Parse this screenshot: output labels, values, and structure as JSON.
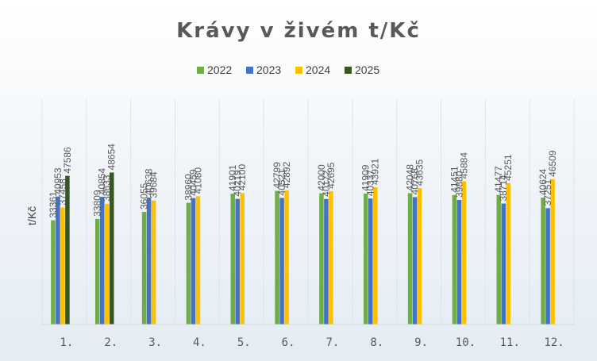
{
  "chart_data": {
    "type": "bar",
    "title": "Krávy v živém t/Kč",
    "xlabel": "",
    "ylabel": "t/Kč",
    "categories": [
      "1.",
      "2.",
      "3.",
      "4.",
      "5.",
      "6.",
      "7.",
      "8.",
      "9.",
      "10.",
      "11.",
      "12."
    ],
    "series": [
      {
        "name": "2022",
        "color": "#70ad47",
        "values": [
          33361,
          33809,
          36055,
          38960,
          41901,
          42799,
          42000,
          41909,
          42048,
          41451,
          41477,
          40624
        ]
      },
      {
        "name": "2023",
        "color": "#4472c4",
        "values": [
          40953,
          40854,
          40638,
          40459,
          40219,
          40521,
          40172,
          40337,
          40768,
          39880,
          38714,
          37251
        ]
      },
      {
        "name": "2024",
        "color": "#ffc000",
        "values": [
          37458,
          38633,
          39684,
          41080,
          42100,
          42892,
          42695,
          43921,
          43635,
          45884,
          45251,
          46509
        ]
      },
      {
        "name": "2025",
        "color": "#375623",
        "values": [
          47586,
          48654,
          null,
          null,
          null,
          null,
          null,
          null,
          null,
          null,
          null,
          null
        ]
      }
    ],
    "ylim": [
      0,
      80000
    ],
    "grid": "vertical",
    "legend": "top"
  }
}
